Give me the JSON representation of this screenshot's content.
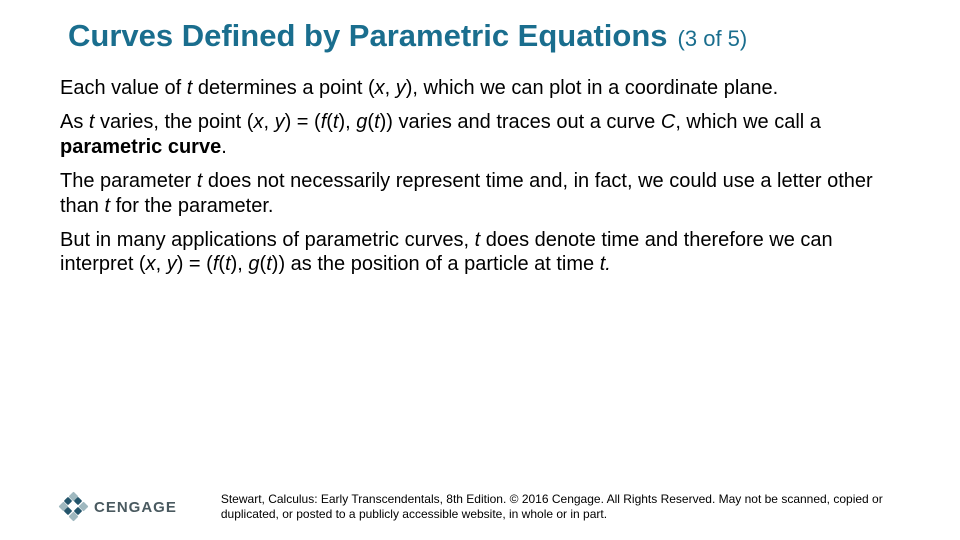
{
  "title": "Curves Defined by Parametric Equations",
  "slide_indicator": "(3 of 5)",
  "paragraphs": {
    "p1_a": "Each value of ",
    "p1_t1": "t",
    "p1_b": " determines a point (",
    "p1_x": "x",
    "p1_c": ", ",
    "p1_y": "y",
    "p1_d": "), which we can plot in a coordinate plane.",
    "p2_a": "As ",
    "p2_t1": "t",
    "p2_b": " varies, the point (",
    "p2_x": "x",
    "p2_c": ", ",
    "p2_y": "y",
    "p2_d": ") = (",
    "p2_f": "f",
    "p2_e": "(",
    "p2_t2": "t",
    "p2_g": "), ",
    "p2_gfn": "g",
    "p2_h": "(",
    "p2_t3": "t",
    "p2_i": ")) varies and traces out a curve ",
    "p2_C": "C",
    "p2_j": ", which we call a ",
    "p2_pc": "parametric curve",
    "p2_k": ".",
    "p3_a": "The parameter ",
    "p3_t1": "t",
    "p3_b": " does not necessarily represent time and, in fact, we could use a letter other than ",
    "p3_t2": "t",
    "p3_c": " for the parameter.",
    "p4_a": "But in many applications of parametric curves, ",
    "p4_t1": "t",
    "p4_b": " does denote time and therefore we can interpret (",
    "p4_x": "x",
    "p4_c": ", ",
    "p4_y": "y",
    "p4_d": ") = (",
    "p4_f": "f",
    "p4_e": "(",
    "p4_t2": "t",
    "p4_g": "), ",
    "p4_gfn": "g",
    "p4_h": "(",
    "p4_t3": "t",
    "p4_i": ")) as the position of a particle at time ",
    "p4_t4": "t.",
    "p4_j": ""
  },
  "logo_text": "CENGAGE",
  "copyright": "Stewart, Calculus: Early Transcendentals, 8th Edition. © 2016 Cengage. All Rights Reserved. May not be scanned, copied or duplicated, or posted to a publicly accessible website, in whole or in part.",
  "colors": {
    "title": "#1a6e8e",
    "body_text": "#000000",
    "background": "#ffffff",
    "logo_light": "#9fb8bf",
    "logo_dark": "#24556b"
  }
}
